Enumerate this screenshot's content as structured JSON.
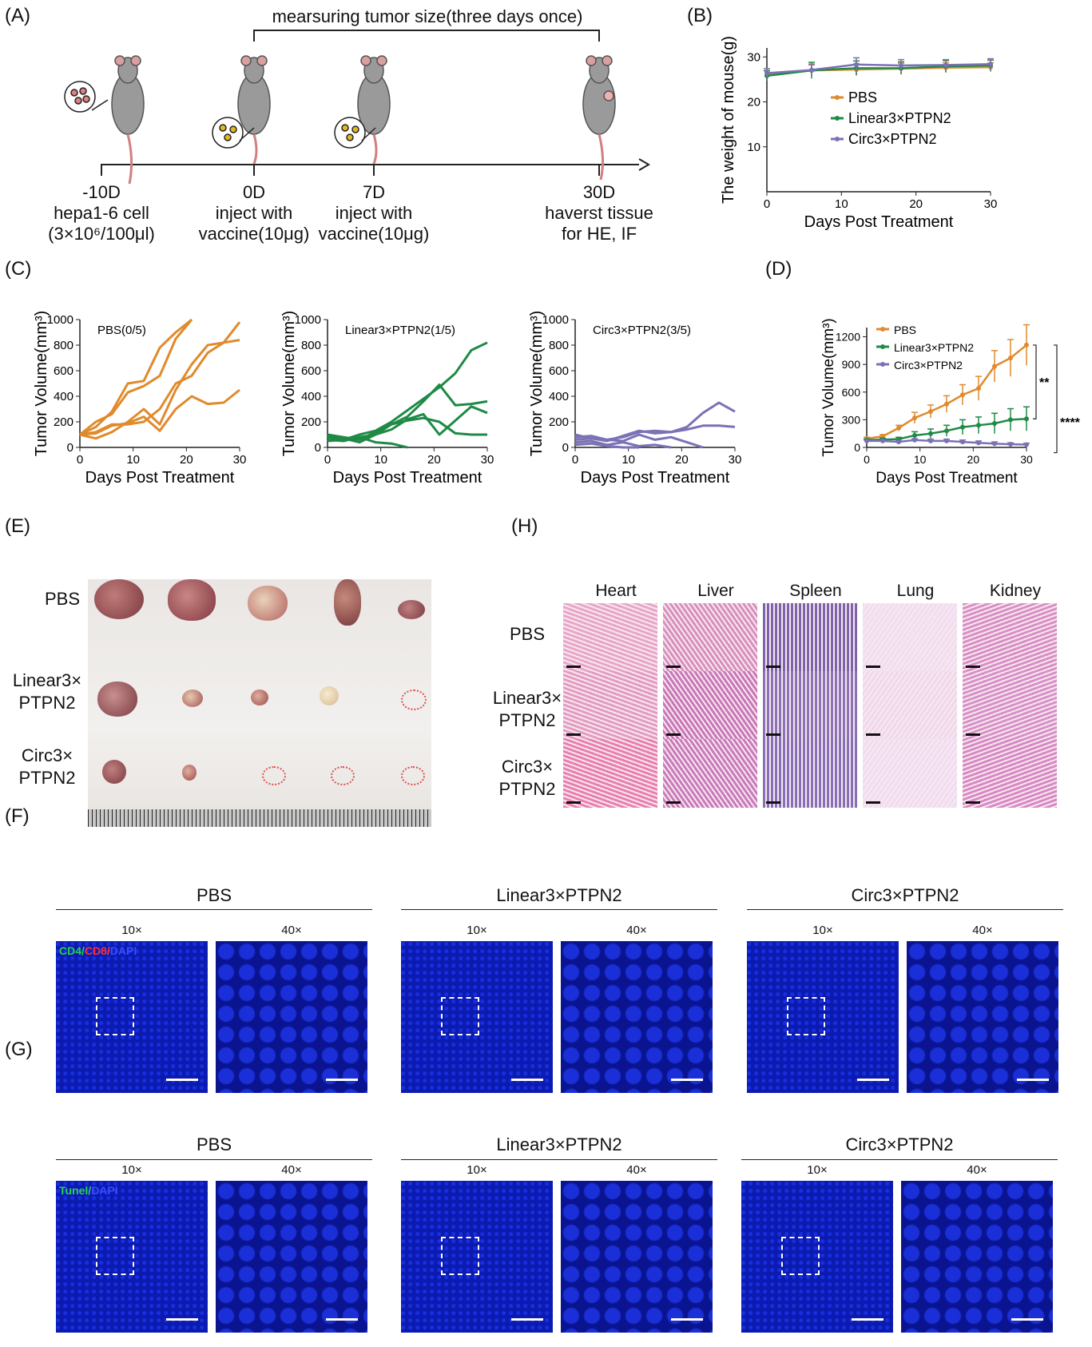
{
  "panels": {
    "A": "(A)",
    "B": "(B)",
    "C": "(C)",
    "D": "(D)",
    "E": "(E)",
    "F": "(F)",
    "G": "(G)",
    "H": "(H)"
  },
  "timeline": {
    "bracket_label": "mearsuring tumor size(three days once)",
    "points": [
      {
        "day": "-10D",
        "line1": "hepa1-6 cell",
        "line2": "(3×10⁶/100μl)"
      },
      {
        "day": "0D",
        "line1": "inject with",
        "line2": "vaccine(10μg)"
      },
      {
        "day": "7D",
        "line1": "inject with",
        "line2": "vaccine(10μg)"
      },
      {
        "day": "30D",
        "line1": "haverst tissue",
        "line2": "for HE, IF"
      }
    ]
  },
  "chart_data": [
    {
      "id": "B",
      "type": "line",
      "xlabel": "Days Post Treatment",
      "ylabel": "The weight of mouse(g)",
      "xlim": [
        0,
        30
      ],
      "ylim": [
        0,
        32
      ],
      "xticks": [
        0,
        10,
        20,
        30
      ],
      "yticks": [
        10,
        20,
        30
      ],
      "legend_position": "center-right",
      "x": [
        0,
        6,
        12,
        18,
        24,
        30
      ],
      "series": [
        {
          "name": "PBS",
          "color": "#e08a2c",
          "values": [
            26.0,
            27.0,
            27.2,
            27.4,
            27.6,
            27.7
          ],
          "error": [
            1.0,
            1.2,
            1.3,
            1.2,
            1.1,
            1.0
          ]
        },
        {
          "name": "Linear3×PTPN2",
          "color": "#1e8a46",
          "values": [
            25.8,
            27.0,
            27.5,
            27.5,
            27.9,
            28.1
          ],
          "error": [
            1.1,
            1.8,
            1.6,
            1.4,
            1.3,
            1.2
          ]
        },
        {
          "name": "Circ3×PTPN2",
          "color": "#7a72b5",
          "values": [
            26.4,
            27.1,
            28.3,
            28.1,
            28.2,
            28.4
          ],
          "error": [
            1.0,
            1.3,
            1.5,
            1.3,
            1.2,
            1.2
          ]
        }
      ]
    },
    {
      "id": "C1",
      "type": "line",
      "annotation": "PBS(0/5)",
      "xlabel": "Days Post Treatment",
      "ylabel": "Tumor Volume(mm³)",
      "xlim": [
        0,
        30
      ],
      "ylim": [
        0,
        1000
      ],
      "xticks": [
        0,
        10,
        20,
        30
      ],
      "yticks": [
        0,
        200,
        400,
        600,
        800,
        1000
      ],
      "color": "#e08a2c",
      "lines": [
        {
          "x": [
            0,
            3,
            6,
            9,
            12,
            15,
            18,
            21
          ],
          "y": [
            100,
            160,
            280,
            500,
            520,
            780,
            900,
            1000
          ]
        },
        {
          "x": [
            0,
            3,
            6,
            9,
            12,
            15,
            18,
            21
          ],
          "y": [
            100,
            200,
            260,
            430,
            480,
            560,
            850,
            1000
          ]
        },
        {
          "x": [
            0,
            3,
            6,
            9,
            12,
            15,
            18,
            21,
            24,
            27,
            30
          ],
          "y": [
            100,
            120,
            180,
            180,
            200,
            300,
            500,
            560,
            740,
            820,
            980
          ]
        },
        {
          "x": [
            0,
            3,
            6,
            9,
            12,
            15,
            18,
            21,
            24,
            27,
            30
          ],
          "y": [
            100,
            70,
            120,
            200,
            300,
            180,
            450,
            650,
            800,
            820,
            840
          ]
        },
        {
          "x": [
            0,
            3,
            6,
            9,
            12,
            15,
            18,
            21,
            24,
            27,
            30
          ],
          "y": [
            100,
            110,
            170,
            190,
            240,
            130,
            300,
            400,
            340,
            350,
            450
          ]
        }
      ]
    },
    {
      "id": "C2",
      "type": "line",
      "annotation": "Linear3×PTPN2(1/5)",
      "xlabel": "Days Post Treatment",
      "ylabel": "Tumor Volume(mm³)",
      "xlim": [
        0,
        30
      ],
      "ylim": [
        0,
        1000
      ],
      "xticks": [
        0,
        10,
        20,
        30
      ],
      "yticks": [
        0,
        200,
        400,
        600,
        800,
        1000
      ],
      "color": "#1e8a46",
      "lines": [
        {
          "x": [
            0,
            3,
            6,
            9,
            12,
            15,
            18,
            21,
            24,
            27,
            30
          ],
          "y": [
            80,
            60,
            100,
            130,
            200,
            290,
            380,
            470,
            580,
            760,
            820
          ]
        },
        {
          "x": [
            0,
            3,
            6,
            9,
            12,
            15,
            18,
            21,
            24,
            27,
            30
          ],
          "y": [
            100,
            80,
            60,
            120,
            180,
            240,
            360,
            490,
            330,
            340,
            360
          ]
        },
        {
          "x": [
            0,
            3,
            6,
            9,
            12,
            15,
            18,
            21,
            24,
            27,
            30
          ],
          "y": [
            60,
            50,
            80,
            100,
            140,
            220,
            260,
            100,
            210,
            320,
            270
          ]
        },
        {
          "x": [
            0,
            3,
            6,
            9,
            12,
            15,
            18,
            21,
            24,
            27,
            30
          ],
          "y": [
            90,
            70,
            40,
            100,
            180,
            210,
            230,
            200,
            110,
            100,
            100
          ]
        },
        {
          "x": [
            0,
            3,
            6,
            9,
            12,
            15
          ],
          "y": [
            50,
            60,
            80,
            40,
            30,
            0
          ]
        }
      ]
    },
    {
      "id": "C3",
      "type": "line",
      "annotation": "Circ3×PTPN2(3/5)",
      "xlabel": "Days Post Treatment",
      "ylabel": "Tumor Volume(mm³)",
      "xlim": [
        0,
        30
      ],
      "ylim": [
        0,
        1000
      ],
      "xticks": [
        0,
        10,
        20,
        30
      ],
      "yticks": [
        0,
        200,
        400,
        600,
        800,
        1000
      ],
      "color": "#7a72b5",
      "lines": [
        {
          "x": [
            0,
            3,
            6,
            9,
            12,
            15,
            18,
            21,
            24,
            27,
            30
          ],
          "y": [
            80,
            90,
            60,
            80,
            120,
            130,
            120,
            160,
            270,
            350,
            280
          ]
        },
        {
          "x": [
            0,
            3,
            6,
            9,
            12,
            15,
            18,
            21,
            24,
            27,
            30
          ],
          "y": [
            100,
            70,
            50,
            90,
            130,
            110,
            120,
            140,
            170,
            170,
            160
          ]
        },
        {
          "x": [
            0,
            3,
            6,
            9,
            12,
            15,
            18,
            21,
            24
          ],
          "y": [
            60,
            70,
            60,
            50,
            100,
            60,
            80,
            40,
            0
          ]
        },
        {
          "x": [
            0,
            3,
            6,
            9,
            12,
            15,
            18
          ],
          "y": [
            40,
            50,
            20,
            40,
            10,
            20,
            0
          ]
        },
        {
          "x": [
            0,
            3,
            6,
            9,
            12
          ],
          "y": [
            20,
            30,
            10,
            0,
            0
          ]
        }
      ]
    },
    {
      "id": "D",
      "type": "line",
      "xlabel": "Days Post Treatment",
      "ylabel": "Tumor Volume(mm³)",
      "xlim": [
        0,
        30
      ],
      "ylim": [
        0,
        1300
      ],
      "xticks": [
        0,
        10,
        20,
        30
      ],
      "yticks": [
        0,
        300,
        600,
        900,
        1200
      ],
      "legend_position": "top-left",
      "significance": [
        "**",
        "****"
      ],
      "x": [
        0,
        3,
        6,
        9,
        12,
        15,
        18,
        21,
        24,
        27,
        30
      ],
      "series": [
        {
          "name": "PBS",
          "color": "#e08a2c",
          "values": [
            95,
            120,
            210,
            320,
            390,
            470,
            570,
            640,
            880,
            970,
            1110
          ],
          "error": [
            15,
            20,
            30,
            60,
            70,
            90,
            110,
            130,
            170,
            200,
            220
          ]
        },
        {
          "name": "Linear3×PTPN2",
          "color": "#1e8a46",
          "values": [
            80,
            85,
            90,
            130,
            150,
            180,
            220,
            240,
            260,
            300,
            310
          ],
          "error": [
            10,
            15,
            20,
            40,
            50,
            60,
            80,
            90,
            110,
            120,
            130
          ]
        },
        {
          "name": "Circ3×PTPN2",
          "color": "#7a72b5",
          "values": [
            70,
            70,
            60,
            80,
            70,
            70,
            60,
            50,
            40,
            35,
            30
          ],
          "error": [
            10,
            10,
            15,
            15,
            20,
            20,
            20,
            20,
            20,
            15,
            15
          ]
        }
      ]
    }
  ],
  "photo_E": {
    "rows": [
      "PBS",
      "Linear3×\nPTPN2",
      "Circ3×\nPTPN2"
    ],
    "row_labels": [
      [
        "PBS"
      ],
      [
        "Linear3×",
        "PTPN2"
      ],
      [
        "Circ3×",
        "PTPN2"
      ]
    ]
  },
  "panel_H": {
    "columns": [
      "Heart",
      "Liver",
      "Spleen",
      "Lung",
      "Kidney"
    ],
    "rows": [
      [
        "PBS"
      ],
      [
        "Linear3×",
        "PTPN2"
      ],
      [
        "Circ3×",
        "PTPN2"
      ]
    ]
  },
  "panel_F": {
    "groups": [
      "PBS",
      "Linear3×PTPN2",
      "Circ3×PTPN2"
    ],
    "mag": [
      "10×",
      "40×"
    ],
    "stain": {
      "a": "CD4/",
      "b": "CD8/",
      "c": "DAPI"
    }
  },
  "panel_G": {
    "groups": [
      "PBS",
      "Linear3×PTPN2",
      "Circ3×PTPN2"
    ],
    "mag": [
      "10×",
      "40×"
    ],
    "stain": {
      "a": "Tunel/",
      "b": "DAPI"
    }
  },
  "colors": {
    "pbs": "#e08a2c",
    "linear": "#1e8a46",
    "circ": "#7a72b5",
    "dapi": "#0a1ac8"
  }
}
